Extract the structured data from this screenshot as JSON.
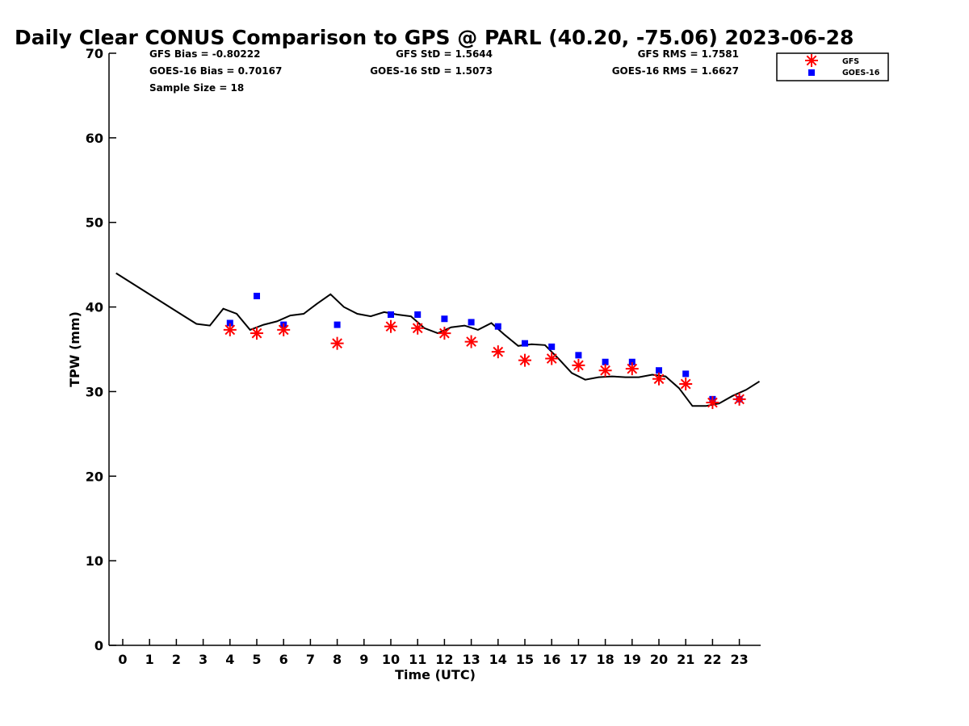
{
  "chart_data": {
    "type": "scatter",
    "title": "Daily Clear CONUS Comparison to GPS @ PARL (40.20, -75.06) 2023-06-28",
    "xlabel": "Time (UTC)",
    "ylabel": "TPW (mm)",
    "xlim": [
      -0.5,
      23.75
    ],
    "ylim": [
      0,
      70
    ],
    "x_ticks": [
      "0",
      "1",
      "2",
      "3",
      "4",
      "5",
      "6",
      "7",
      "8",
      "9",
      "10",
      "11",
      "12",
      "13",
      "14",
      "15",
      "16",
      "17",
      "18",
      "19",
      "20",
      "21",
      "22",
      "23"
    ],
    "y_ticks": [
      "0",
      "10",
      "20",
      "30",
      "40",
      "50",
      "60",
      "70"
    ],
    "grid": false,
    "legend_position": "top-right",
    "stats": {
      "gfs_bias": "GFS Bias = -0.80222",
      "goes_bias": "GOES-16 Bias = 0.70167",
      "sample_size": "Sample Size = 18",
      "gfs_std": "GFS StD = 1.5644",
      "goes_std": "GOES-16 StD = 1.5073",
      "gfs_rms": "GFS RMS = 1.7581",
      "goes_rms": "GOES-16 RMS = 1.6627"
    },
    "series": [
      {
        "name": "GFS",
        "marker": "asterisk",
        "color": "#ff0000",
        "x": [
          4,
          5,
          6,
          8,
          10,
          11,
          12,
          13,
          14,
          15,
          16,
          17,
          18,
          19,
          20,
          21,
          22,
          23
        ],
        "y": [
          37.3,
          36.9,
          37.3,
          35.7,
          37.7,
          37.5,
          36.9,
          35.9,
          34.7,
          33.7,
          33.9,
          33.1,
          32.5,
          32.7,
          31.5,
          30.9,
          28.7,
          29.1
        ]
      },
      {
        "name": "GOES-16",
        "marker": "square",
        "color": "#0000ff",
        "x": [
          4,
          5,
          6,
          8,
          10,
          11,
          12,
          13,
          14,
          15,
          16,
          17,
          18,
          19,
          20,
          21,
          22,
          23
        ],
        "y": [
          38.1,
          41.3,
          37.9,
          37.9,
          39.1,
          39.1,
          38.6,
          38.2,
          37.7,
          35.7,
          35.3,
          34.3,
          33.5,
          33.5,
          32.5,
          32.1,
          29.1,
          29.1
        ]
      },
      {
        "marker": "line",
        "color": "#000000",
        "x": [
          -0.25,
          0.25,
          0.75,
          1.25,
          1.75,
          2.25,
          2.75,
          3.25,
          3.75,
          4.25,
          4.75,
          5.25,
          5.75,
          6.25,
          6.75,
          7.25,
          7.75,
          8.25,
          8.75,
          9.25,
          9.75,
          10.25,
          10.75,
          11.25,
          11.75,
          12.25,
          12.75,
          13.25,
          13.75,
          14.25,
          14.75,
          15.25,
          15.75,
          16.25,
          16.75,
          17.25,
          17.75,
          18.25,
          18.75,
          19.25,
          19.75,
          20.25,
          20.75,
          21.25,
          21.75,
          22.25,
          22.75,
          23.25,
          23.75
        ],
        "y": [
          44.0,
          43.0,
          42.0,
          41.0,
          40.0,
          39.0,
          38.0,
          37.8,
          39.8,
          39.2,
          37.3,
          37.9,
          38.3,
          39.0,
          39.2,
          40.4,
          41.5,
          40.0,
          39.2,
          38.9,
          39.4,
          39.1,
          38.9,
          37.5,
          36.9,
          37.6,
          37.8,
          37.3,
          38.1,
          36.7,
          35.4,
          35.6,
          35.5,
          33.9,
          32.2,
          31.4,
          31.7,
          31.8,
          31.7,
          31.7,
          32.0,
          31.8,
          30.4,
          28.3,
          28.3,
          28.6,
          29.5,
          30.2,
          31.2
        ]
      }
    ]
  }
}
